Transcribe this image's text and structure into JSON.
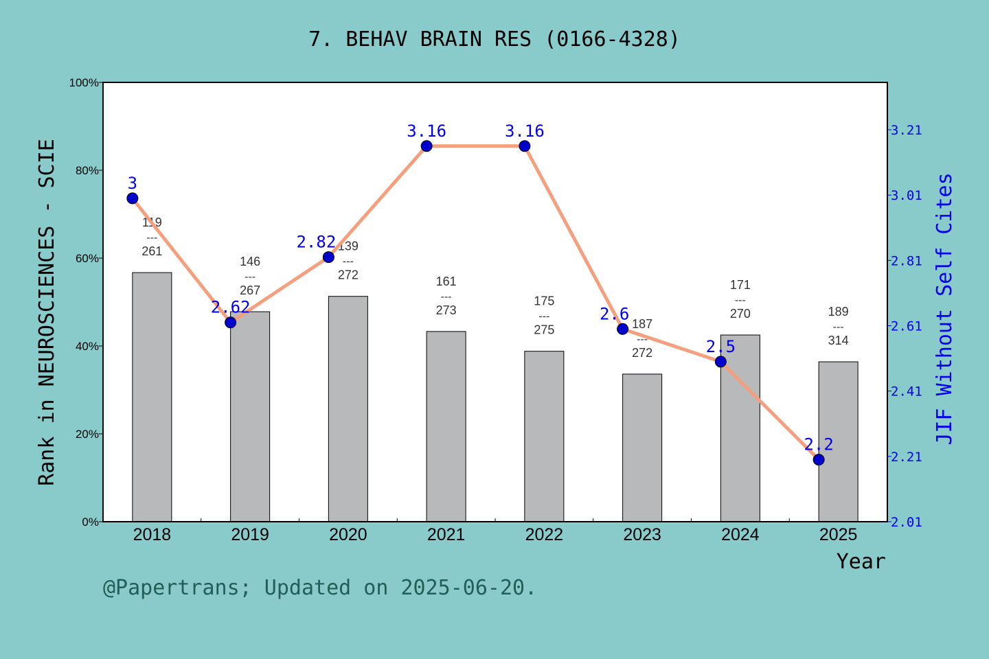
{
  "chart_data": {
    "type": "bar+line",
    "title": "7. BEHAV BRAIN RES (0166-4328)",
    "xlabel": "Year",
    "ylabel": "Rank in NEUROSCIENCES - SCIE",
    "y2label": "JIF Without Self Cites",
    "categories": [
      "2018",
      "2019",
      "2020",
      "2021",
      "2022",
      "2023",
      "2024",
      "2025"
    ],
    "bar_values_percent": [
      56.7,
      47.8,
      51.3,
      43.3,
      38.8,
      33.6,
      42.5,
      36.4
    ],
    "rank": [
      "119",
      "146",
      "139",
      "161",
      "175",
      "187",
      "171",
      "189"
    ],
    "total": [
      "261",
      "267",
      "272",
      "273",
      "275",
      "272",
      "270",
      "314"
    ],
    "rank_separator": "---",
    "jif": [
      3,
      2.62,
      2.82,
      3.16,
      3.16,
      2.6,
      2.5,
      2.2
    ],
    "jif_labels": [
      "3",
      "2.62",
      "2.82",
      "3.16",
      "3.16",
      "2.6",
      "2.5",
      "2.2"
    ],
    "ylim": [
      0,
      100
    ],
    "yticks": [
      "0%",
      "20%",
      "40%",
      "60%",
      "80%",
      "100%"
    ],
    "y2lim": [
      2.01,
      3.355
    ],
    "y2ticks": [
      "2.01",
      "2.21",
      "2.41",
      "2.61",
      "2.81",
      "3.01",
      "3.21"
    ],
    "colors": {
      "background": "#88cbca",
      "bar": "#b8b9bb",
      "line": "#f4a07f",
      "point": "#0000cc",
      "jif_text": "#0000ee",
      "footer": "#1f5f58"
    }
  },
  "footer": "@Papertrans; Updated on 2025-06-20."
}
